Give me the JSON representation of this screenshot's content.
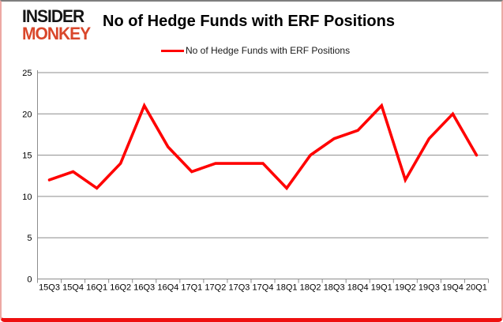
{
  "logo": {
    "line1": "INSIDER",
    "line2": "MONKEY"
  },
  "header": {
    "title": "No of Hedge Funds with ERF Positions"
  },
  "legend": {
    "label": "No of Hedge Funds with ERF Positions"
  },
  "colors": {
    "series": "#ff0000",
    "grid": "#8c8c8c",
    "axis": "#8c8c8c",
    "text": "#000000",
    "logo_primary": "#151515",
    "logo_accent": "#d9472b",
    "border_bottom": "#ee0f0f",
    "border_side": "#eda9a4",
    "border_top": "#7e7e7e"
  },
  "chart_data": {
    "type": "line",
    "title": "No of Hedge Funds with ERF Positions",
    "series_name": "No of Hedge Funds with ERF Positions",
    "categories": [
      "15Q3",
      "15Q4",
      "16Q1",
      "16Q2",
      "16Q3",
      "16Q4",
      "17Q1",
      "17Q2",
      "17Q3",
      "17Q4",
      "18Q1",
      "18Q2",
      "18Q3",
      "18Q4",
      "19Q1",
      "19Q2",
      "19Q3",
      "19Q4",
      "20Q1"
    ],
    "values": [
      12,
      13,
      11,
      14,
      21,
      16,
      13,
      14,
      14,
      14,
      11,
      15,
      17,
      18,
      21,
      12,
      17,
      20,
      15
    ],
    "ylim": [
      0,
      25
    ],
    "yticks": [
      0,
      5,
      10,
      15,
      20,
      25
    ],
    "grid": true,
    "legend_position": "top-center",
    "xlabel": "",
    "ylabel": ""
  }
}
